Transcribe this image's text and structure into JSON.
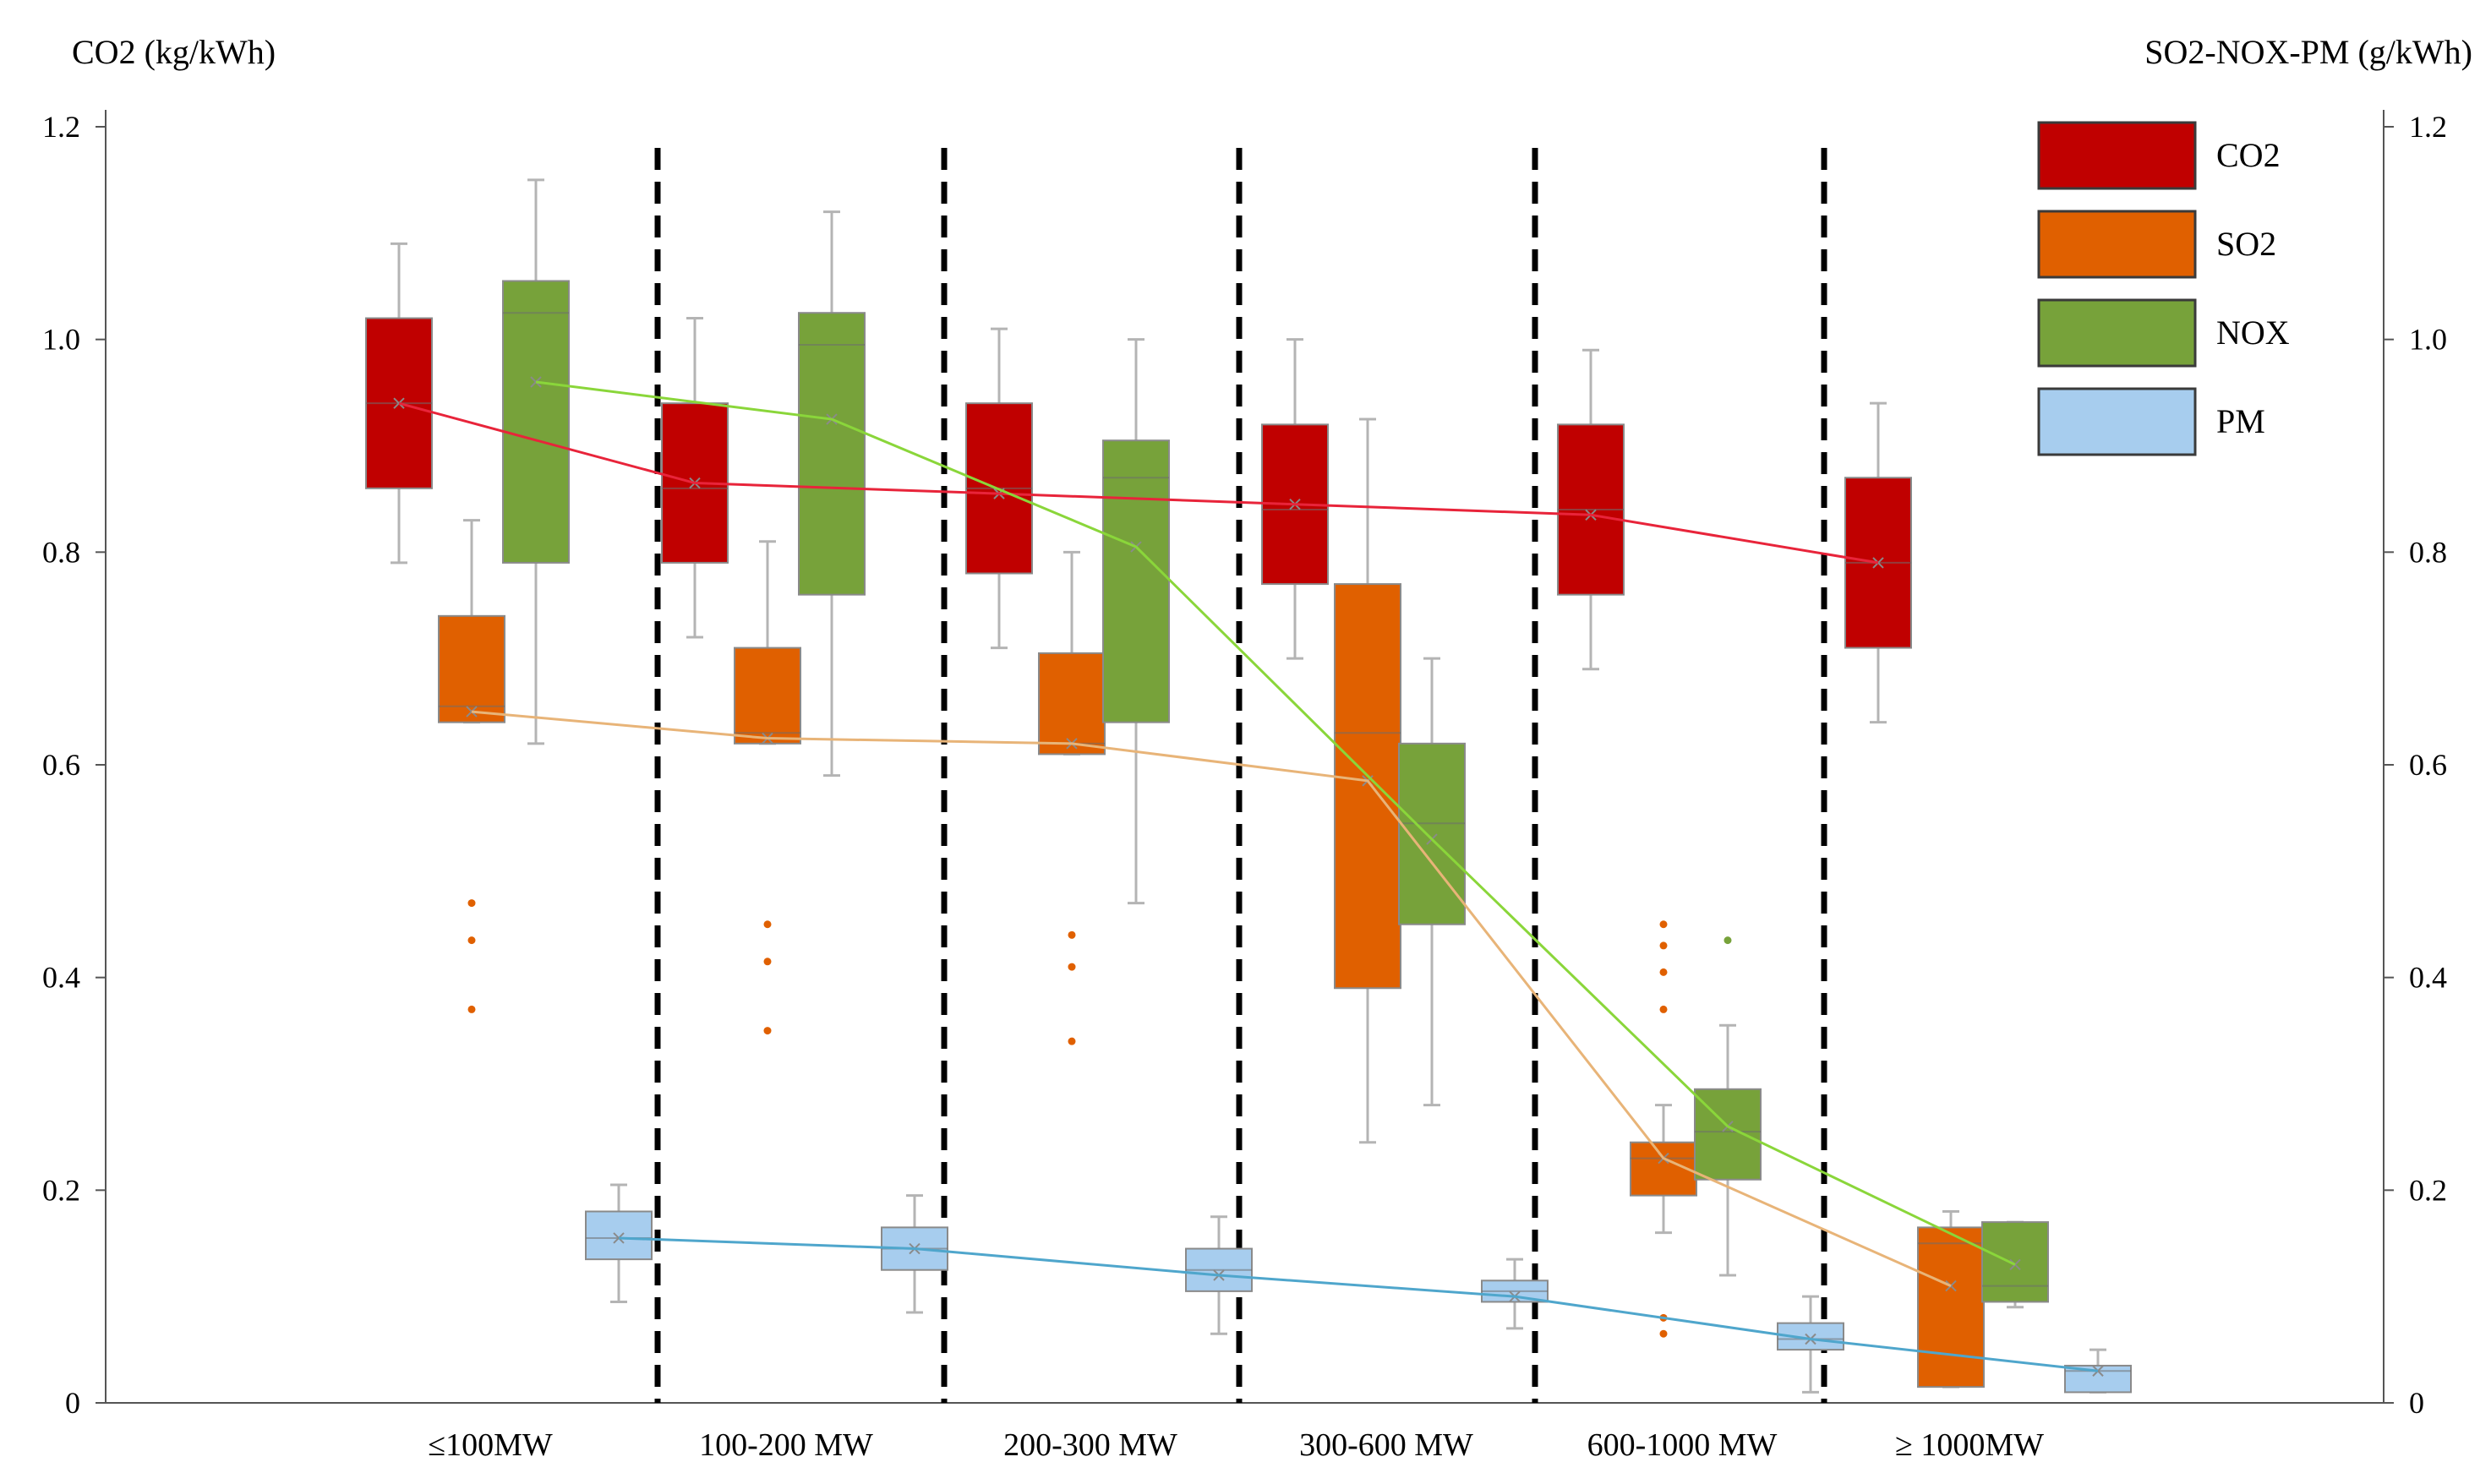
{
  "chart_data": {
    "type": "box",
    "title": "",
    "ylabel_left": "CO2 (kg/kWh)",
    "ylabel_right": "SO2-NOX-PM (g/kWh)",
    "ylim": [
      0,
      1.2
    ],
    "yticks": [
      {
        "value": 0,
        "label": "0"
      },
      {
        "value": 0.2,
        "label": "0.2"
      },
      {
        "value": 0.4,
        "label": "0.4"
      },
      {
        "value": 0.6,
        "label": "0.6"
      },
      {
        "value": 0.8,
        "label": "0.8"
      },
      {
        "value": 1.0,
        "label": "1.0"
      },
      {
        "value": 1.2,
        "label": "1.2"
      }
    ],
    "categories": [
      "≤100MW",
      "100-200 MW",
      "200-300 MW",
      "300-600 MW",
      "600-1000 MW",
      "≥ 1000MW"
    ],
    "legend": {
      "position": "top-right"
    },
    "series": [
      {
        "name": "CO2",
        "color": "#c00000",
        "line_color": "#e8243a",
        "boxes": [
          {
            "min": 0.79,
            "q1": 0.86,
            "median": 0.94,
            "q3": 1.02,
            "max": 1.09,
            "mean": 0.94,
            "outliers": []
          },
          {
            "min": 0.72,
            "q1": 0.79,
            "median": 0.86,
            "q3": 0.94,
            "max": 1.02,
            "mean": 0.865,
            "outliers": []
          },
          {
            "min": 0.71,
            "q1": 0.78,
            "median": 0.86,
            "q3": 0.94,
            "max": 1.01,
            "mean": 0.855,
            "outliers": []
          },
          {
            "min": 0.7,
            "q1": 0.77,
            "median": 0.84,
            "q3": 0.92,
            "max": 1.0,
            "mean": 0.845,
            "outliers": []
          },
          {
            "min": 0.69,
            "q1": 0.76,
            "median": 0.84,
            "q3": 0.92,
            "max": 0.99,
            "mean": 0.835,
            "outliers": []
          },
          {
            "min": 0.64,
            "q1": 0.71,
            "median": 0.79,
            "q3": 0.87,
            "max": 0.94,
            "mean": 0.79,
            "outliers": []
          }
        ]
      },
      {
        "name": "SO2",
        "color": "#e06000",
        "line_color": "#e8b478",
        "boxes": [
          {
            "min": 0.64,
            "q1": 0.64,
            "median": 0.655,
            "q3": 0.74,
            "max": 0.83,
            "mean": 0.65,
            "outliers": [
              0.47,
              0.435,
              0.37
            ]
          },
          {
            "min": 0.62,
            "q1": 0.62,
            "median": 0.63,
            "q3": 0.71,
            "max": 0.81,
            "mean": 0.625,
            "outliers": [
              0.45,
              0.415,
              0.35
            ]
          },
          {
            "min": 0.61,
            "q1": 0.61,
            "median": 0.62,
            "q3": 0.705,
            "max": 0.8,
            "mean": 0.62,
            "outliers": [
              0.44,
              0.41,
              0.34
            ]
          },
          {
            "min": 0.245,
            "q1": 0.39,
            "median": 0.63,
            "q3": 0.77,
            "max": 0.925,
            "mean": 0.585,
            "outliers": []
          },
          {
            "min": 0.16,
            "q1": 0.195,
            "median": 0.23,
            "q3": 0.245,
            "max": 0.28,
            "mean": 0.23,
            "outliers": [
              0.45,
              0.43,
              0.405,
              0.37,
              0.08,
              0.065
            ]
          },
          {
            "min": 0.015,
            "q1": 0.015,
            "median": 0.15,
            "q3": 0.165,
            "max": 0.18,
            "mean": 0.11,
            "outliers": []
          }
        ]
      },
      {
        "name": "NOX",
        "color": "#77a23a",
        "line_color": "#8ad63a",
        "boxes": [
          {
            "min": 0.62,
            "q1": 0.79,
            "median": 1.025,
            "q3": 1.055,
            "max": 1.15,
            "mean": 0.96,
            "outliers": []
          },
          {
            "min": 0.59,
            "q1": 0.76,
            "median": 0.995,
            "q3": 1.025,
            "max": 1.12,
            "mean": 0.925,
            "outliers": []
          },
          {
            "min": 0.47,
            "q1": 0.64,
            "median": 0.87,
            "q3": 0.905,
            "max": 1.0,
            "mean": 0.805,
            "outliers": []
          },
          {
            "min": 0.28,
            "q1": 0.45,
            "median": 0.545,
            "q3": 0.62,
            "max": 0.7,
            "mean": 0.53,
            "outliers": []
          },
          {
            "min": 0.12,
            "q1": 0.21,
            "median": 0.255,
            "q3": 0.295,
            "max": 0.355,
            "mean": 0.26,
            "outliers": [
              0.435
            ]
          },
          {
            "min": 0.09,
            "q1": 0.095,
            "median": 0.11,
            "q3": 0.17,
            "max": 0.17,
            "mean": 0.13,
            "outliers": []
          }
        ]
      },
      {
        "name": "PM",
        "color": "#a7cdee",
        "line_color": "#4fa6cc",
        "boxes": [
          {
            "min": 0.095,
            "q1": 0.135,
            "median": 0.155,
            "q3": 0.18,
            "max": 0.205,
            "mean": 0.155,
            "outliers": []
          },
          {
            "min": 0.085,
            "q1": 0.125,
            "median": 0.145,
            "q3": 0.165,
            "max": 0.195,
            "mean": 0.145,
            "outliers": []
          },
          {
            "min": 0.065,
            "q1": 0.105,
            "median": 0.125,
            "q3": 0.145,
            "max": 0.175,
            "mean": 0.12,
            "outliers": []
          },
          {
            "min": 0.07,
            "q1": 0.095,
            "median": 0.105,
            "q3": 0.115,
            "max": 0.135,
            "mean": 0.1,
            "outliers": []
          },
          {
            "min": 0.01,
            "q1": 0.05,
            "median": 0.06,
            "q3": 0.075,
            "max": 0.1,
            "mean": 0.06,
            "outliers": []
          },
          {
            "min": 0.01,
            "q1": 0.01,
            "median": 0.03,
            "q3": 0.035,
            "max": 0.05,
            "mean": 0.03,
            "outliers": []
          }
        ]
      }
    ]
  }
}
